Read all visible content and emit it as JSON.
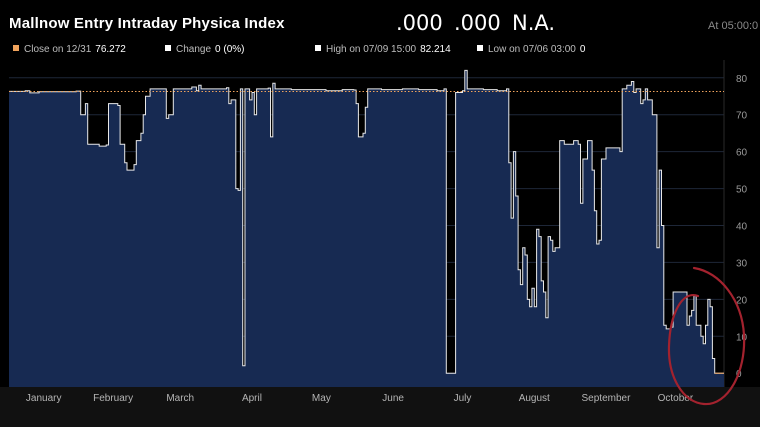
{
  "header": {
    "title": "Mallnow Entry Intraday Physica Index",
    "last": ".000",
    "change": ".000",
    "pct_change": "N.A.",
    "as_of": "At 05:00:0"
  },
  "legend": {
    "close": {
      "label": "Close on 12/31",
      "value": "76.272",
      "color": "#f0a35c"
    },
    "change": {
      "label": "Change",
      "value": "0 (0%)",
      "color": "#ffffff"
    },
    "high": {
      "label": "High on 07/09 15:00",
      "value": "82.214",
      "color": "#ffffff"
    },
    "low": {
      "label": "Low on 07/06 03:00",
      "value": "0",
      "color": "#ffffff"
    }
  },
  "colors": {
    "fill": "#172a52",
    "line": "#e8e8e8",
    "close_line": "#f0a35c",
    "grid": "#1e2738",
    "annotation": "#a3222e"
  },
  "chart_data": {
    "type": "area",
    "title": "Mallnow Entry Intraday Physica Index",
    "xlabel": "",
    "ylabel": "",
    "x_ticks": [
      "January",
      "February",
      "March",
      "April",
      "May",
      "June",
      "July",
      "August",
      "September",
      "October"
    ],
    "x_tick_days": [
      16,
      46,
      75,
      106,
      136,
      167,
      197,
      228,
      259,
      289
    ],
    "x_range": [
      1,
      310
    ],
    "ylim": [
      -4,
      84
    ],
    "y_ticks": [
      0,
      10,
      20,
      30,
      40,
      50,
      60,
      70,
      80
    ],
    "reference_line": {
      "label": "Close on 12/31",
      "value": 76.272
    },
    "grid": true,
    "annotation": "hand-drawn red ellipse around late-October values",
    "series": [
      {
        "values_by_day": [
          [
            1,
            76.3
          ],
          [
            8,
            76.5
          ],
          [
            10,
            75.9
          ],
          [
            14,
            76.2
          ],
          [
            30,
            76.4
          ],
          [
            32,
            70
          ],
          [
            34,
            73
          ],
          [
            35,
            62
          ],
          [
            40,
            61.5
          ],
          [
            43,
            61.8
          ],
          [
            44,
            73
          ],
          [
            48,
            72.5
          ],
          [
            49,
            62
          ],
          [
            51,
            57
          ],
          [
            52,
            55
          ],
          [
            55,
            56.5
          ],
          [
            56,
            63
          ],
          [
            58,
            65
          ],
          [
            59,
            70
          ],
          [
            60,
            75
          ],
          [
            62,
            77
          ],
          [
            68,
            77
          ],
          [
            69,
            69
          ],
          [
            70,
            70
          ],
          [
            72,
            77
          ],
          [
            80,
            77.5
          ],
          [
            82,
            76.5
          ],
          [
            83,
            78
          ],
          [
            84,
            77
          ],
          [
            95,
            77.3
          ],
          [
            96,
            73
          ],
          [
            97,
            74
          ],
          [
            99,
            50
          ],
          [
            100,
            49.5
          ],
          [
            101,
            77
          ],
          [
            102,
            2
          ],
          [
            103,
            77
          ],
          [
            105,
            74
          ],
          [
            106,
            76
          ],
          [
            107,
            70
          ],
          [
            108,
            77
          ],
          [
            113,
            77.2
          ],
          [
            114,
            64
          ],
          [
            115,
            78.5
          ],
          [
            116,
            77
          ],
          [
            123,
            76.8
          ],
          [
            130,
            76.8
          ],
          [
            138,
            76.5
          ],
          [
            145,
            76.8
          ],
          [
            150,
            76.7
          ],
          [
            151,
            73
          ],
          [
            152,
            64
          ],
          [
            154,
            65
          ],
          [
            155,
            72
          ],
          [
            156,
            77
          ],
          [
            162,
            76.8
          ],
          [
            171,
            77
          ],
          [
            178,
            76.8
          ],
          [
            186,
            76.5
          ],
          [
            189,
            77
          ],
          [
            190,
            0
          ],
          [
            193,
            0
          ],
          [
            194,
            76
          ],
          [
            197,
            76.5
          ],
          [
            198,
            82
          ],
          [
            199,
            77
          ],
          [
            206,
            76.8
          ],
          [
            212,
            76.5
          ],
          [
            216,
            77
          ],
          [
            217,
            57
          ],
          [
            218,
            42
          ],
          [
            219,
            60
          ],
          [
            220,
            48
          ],
          [
            221,
            28
          ],
          [
            222,
            24
          ],
          [
            223,
            34
          ],
          [
            224,
            32
          ],
          [
            225,
            20
          ],
          [
            226,
            18
          ],
          [
            227,
            23
          ],
          [
            228,
            18
          ],
          [
            229,
            39
          ],
          [
            230,
            37
          ],
          [
            231,
            25
          ],
          [
            232,
            22
          ],
          [
            233,
            15
          ],
          [
            234,
            37
          ],
          [
            235,
            36
          ],
          [
            236,
            33
          ],
          [
            237,
            34
          ],
          [
            239,
            63
          ],
          [
            241,
            62
          ],
          [
            245,
            63
          ],
          [
            247,
            62
          ],
          [
            248,
            46
          ],
          [
            249,
            58
          ],
          [
            251,
            63
          ],
          [
            253,
            55
          ],
          [
            254,
            44
          ],
          [
            255,
            35
          ],
          [
            256,
            36
          ],
          [
            257,
            58
          ],
          [
            259,
            61
          ],
          [
            265,
            60
          ],
          [
            266,
            77
          ],
          [
            268,
            78
          ],
          [
            270,
            79
          ],
          [
            271,
            76
          ],
          [
            272,
            77
          ],
          [
            274,
            73
          ],
          [
            275,
            74
          ],
          [
            276,
            77
          ],
          [
            277,
            74
          ],
          [
            279,
            70
          ],
          [
            281,
            34
          ],
          [
            282,
            55
          ],
          [
            283,
            40
          ],
          [
            284,
            13
          ],
          [
            285,
            12
          ],
          [
            287,
            12.5
          ],
          [
            288,
            22
          ],
          [
            293,
            22
          ],
          [
            294,
            13
          ],
          [
            295,
            15.5
          ],
          [
            296,
            17
          ],
          [
            297,
            21
          ],
          [
            298,
            13
          ],
          [
            300,
            10
          ],
          [
            301,
            8
          ],
          [
            302,
            13
          ],
          [
            303,
            20
          ],
          [
            304,
            18
          ],
          [
            305,
            4
          ],
          [
            306,
            0
          ],
          [
            310,
            0
          ]
        ]
      }
    ]
  }
}
